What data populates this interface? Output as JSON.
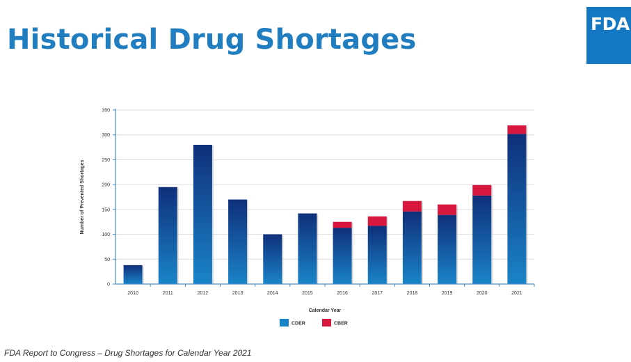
{
  "slide": {
    "title": "Historical Drug Shortages",
    "logo_text": "FDA",
    "footer": "FDA Report to Congress – Drug Shortages for Calendar Year 2021"
  },
  "colors": {
    "title": "#1f7dc0",
    "logo_bg": "#1578c2",
    "cder_top": "#0f2f7a",
    "cder_bottom": "#1a84c8",
    "cber": "#d8173f"
  },
  "chart_data": {
    "type": "bar",
    "stacked": true,
    "categories": [
      "2010",
      "2011",
      "2012",
      "2013",
      "2014",
      "2015",
      "2016",
      "2017",
      "2018",
      "2019",
      "2020",
      "2021"
    ],
    "series": [
      {
        "name": "CDER",
        "values": [
          38,
          195,
          280,
          170,
          100,
          142,
          113,
          117,
          146,
          139,
          178,
          302
        ]
      },
      {
        "name": "CBER",
        "values": [
          0,
          0,
          0,
          0,
          0,
          0,
          12,
          19,
          21,
          21,
          21,
          17
        ]
      }
    ],
    "xlabel": "Calendar Year",
    "ylabel": "Number of Prevented Shortages",
    "ylim": [
      0,
      350
    ],
    "yticks": [
      0,
      50,
      100,
      150,
      200,
      250,
      300,
      350
    ],
    "grid": true,
    "legend": "bottom-center"
  }
}
